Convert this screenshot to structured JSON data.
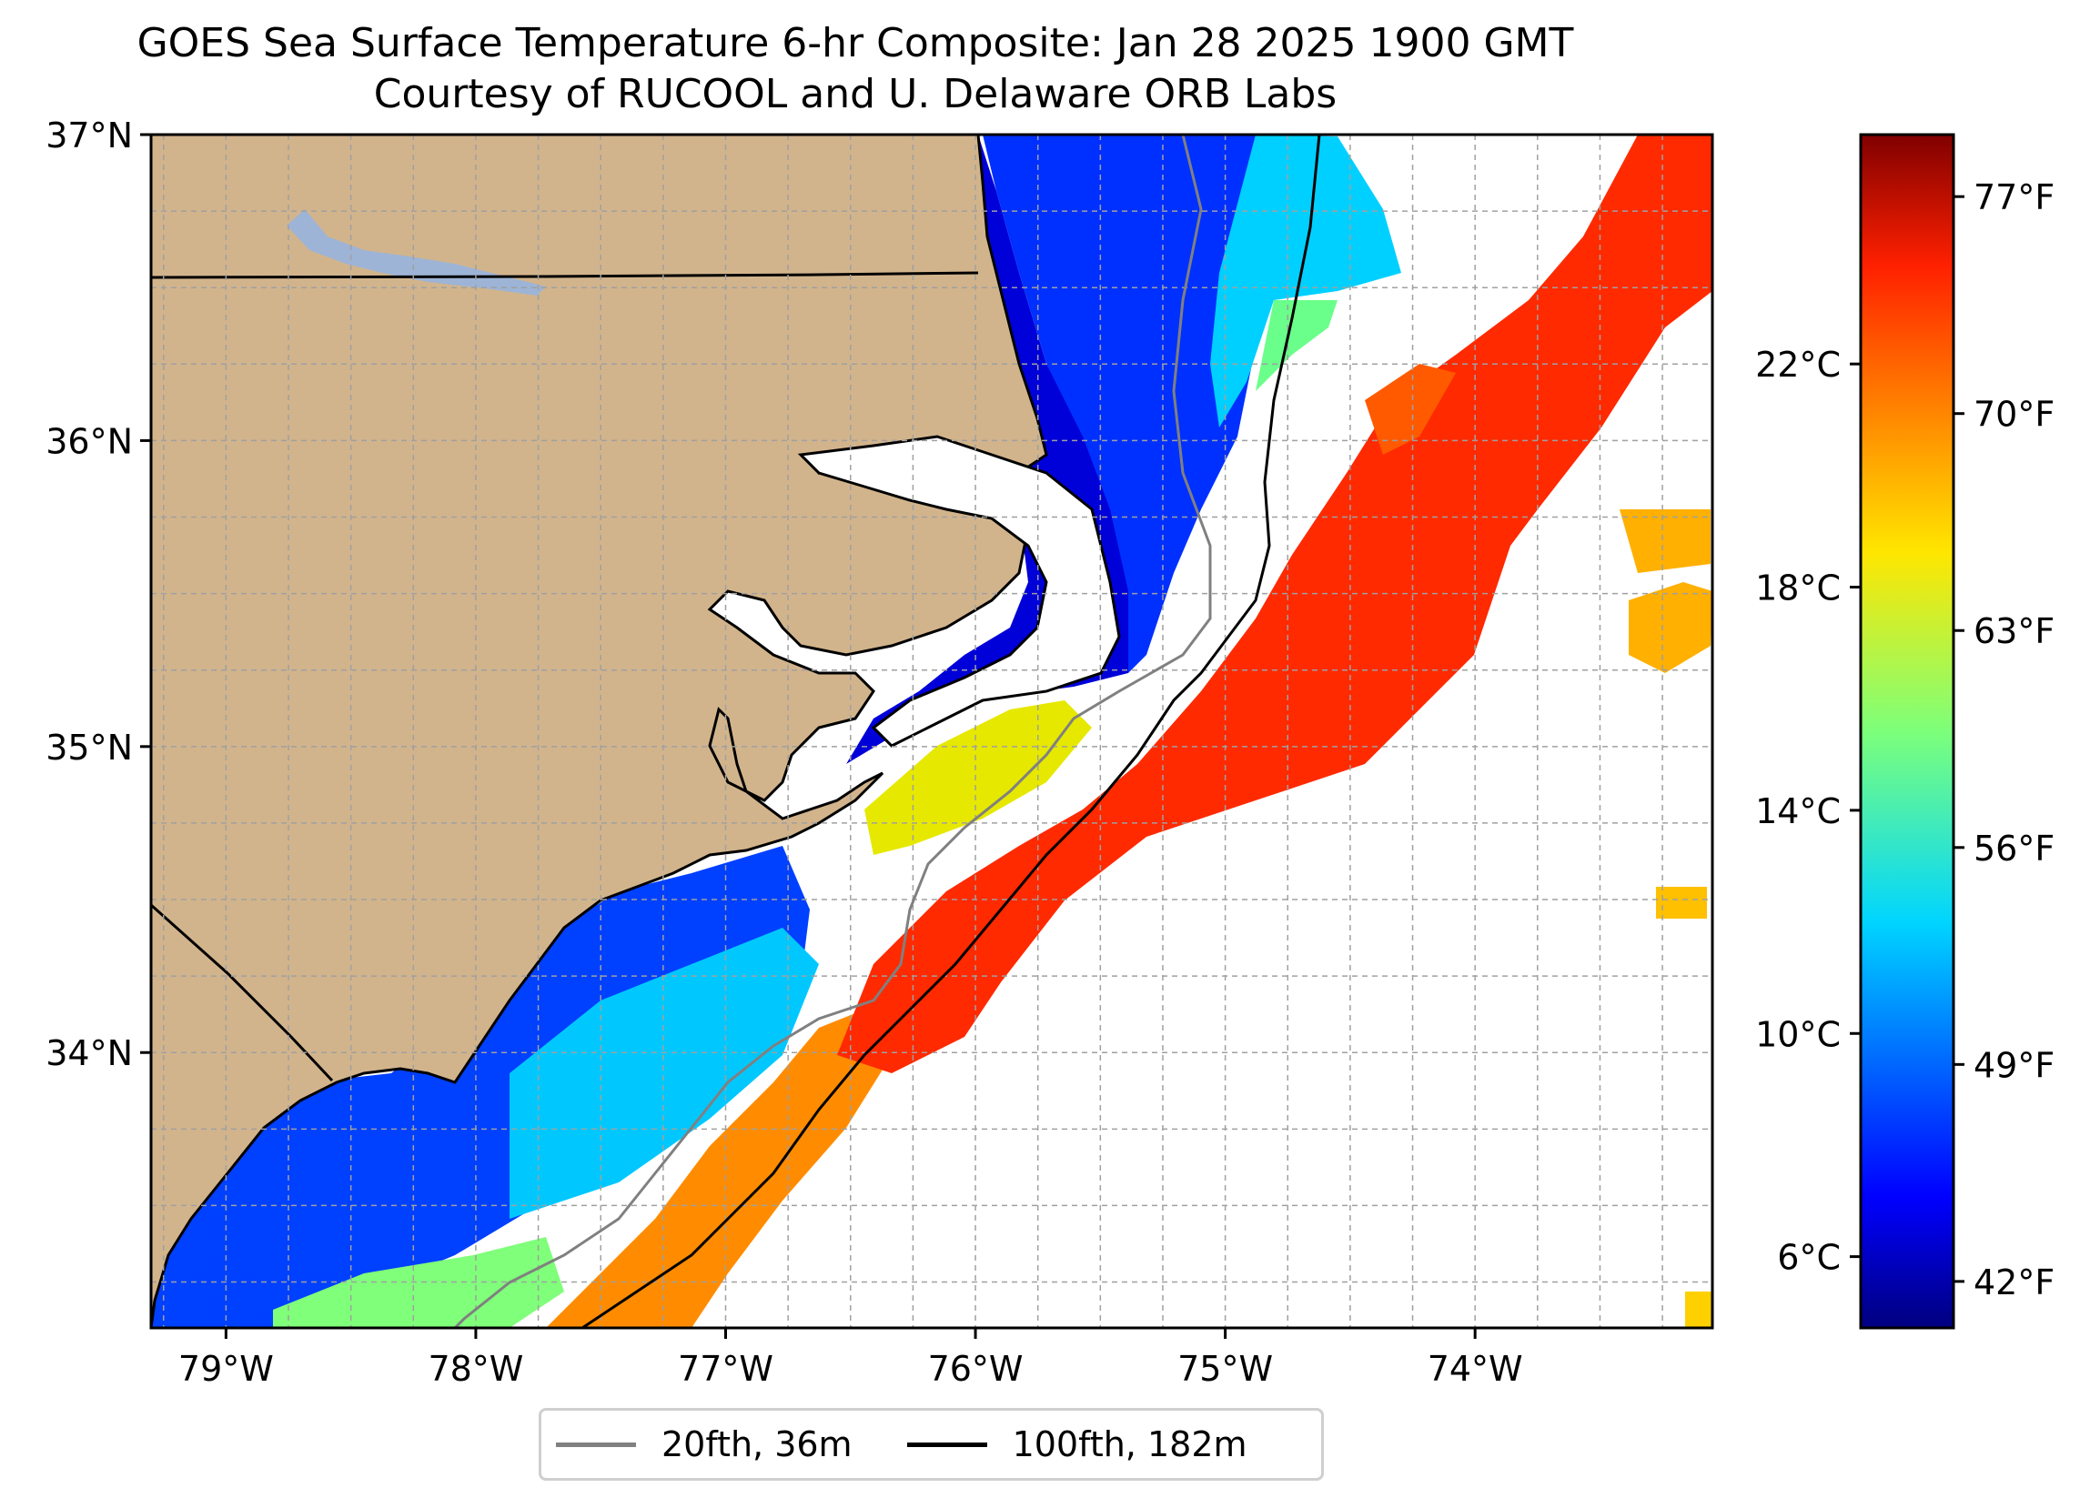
{
  "title": "GOES Sea Surface Temperature 6-hr Composite: Jan 28 2025 1900 GMT",
  "subtitle": "Courtesy of RUCOOL and U. Delaware ORB Labs",
  "map": {
    "lat_range": [
      33.1,
      37.0
    ],
    "lon_range": [
      -79.3,
      -73.05
    ],
    "lat_ticks": [
      {
        "value": 37,
        "label": "37°N"
      },
      {
        "value": 36,
        "label": "36°N"
      },
      {
        "value": 35,
        "label": "35°N"
      },
      {
        "value": 34,
        "label": "34°N"
      }
    ],
    "lon_ticks": [
      {
        "value": -79,
        "label": "79°W"
      },
      {
        "value": -78,
        "label": "78°W"
      },
      {
        "value": -77,
        "label": "77°W"
      },
      {
        "value": -76,
        "label": "76°W"
      },
      {
        "value": -75,
        "label": "75°W"
      },
      {
        "value": -74,
        "label": "74°W"
      }
    ],
    "grid": true,
    "land_color": "#d2b48c"
  },
  "colorbar": {
    "colormap": "jet",
    "range_f": [
      40.5,
      79
    ],
    "celsius_ticks": [
      {
        "value": 22,
        "label": "22°C"
      },
      {
        "value": 18,
        "label": "18°C"
      },
      {
        "value": 14,
        "label": "14°C"
      },
      {
        "value": 10,
        "label": "10°C"
      },
      {
        "value": 6,
        "label": "6°C"
      }
    ],
    "fahrenheit_ticks": [
      {
        "value": 77,
        "label": "77°F"
      },
      {
        "value": 70,
        "label": "70°F"
      },
      {
        "value": 63,
        "label": "63°F"
      },
      {
        "value": 56,
        "label": "56°F"
      },
      {
        "value": 49,
        "label": "49°F"
      },
      {
        "value": 42,
        "label": "42°F"
      }
    ]
  },
  "legend": {
    "placement": "bottom-center",
    "items": [
      {
        "label": "20fth, 36m",
        "color": "#808080"
      },
      {
        "label": "100fth, 182m",
        "color": "#000000"
      }
    ]
  }
}
